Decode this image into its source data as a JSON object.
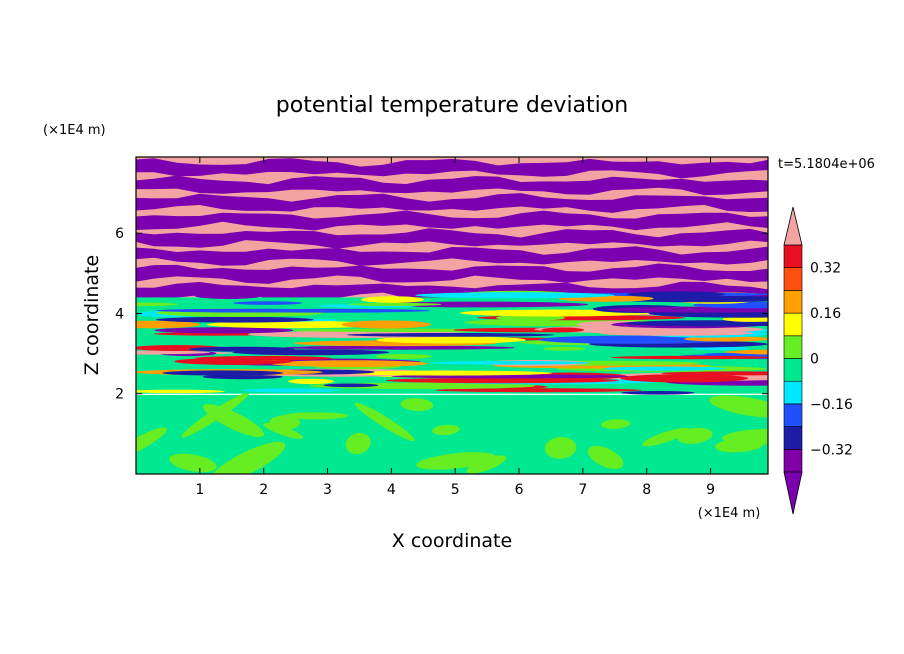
{
  "chart_data": {
    "type": "heatmap",
    "title": "potential temperature deviation",
    "xlabel": "X coordinate",
    "ylabel": "Z coordinate",
    "x_unit": "(×1E4 m)",
    "y_unit": "(×1E4 m)",
    "time_label": "t=5.1804e+06",
    "xlim": [
      0,
      9.9
    ],
    "ylim": [
      0,
      7.9
    ],
    "x_ticks": [
      1,
      2,
      3,
      4,
      5,
      6,
      7,
      8,
      9
    ],
    "y_ticks": [
      2,
      4,
      6
    ],
    "grid": false,
    "colorbar": {
      "levels": [
        -0.4,
        -0.32,
        -0.24,
        -0.16,
        -0.08,
        0,
        0.08,
        0.16,
        0.24,
        0.32,
        0.4
      ],
      "tick_values": [
        0.32,
        0.16,
        0,
        -0.16,
        -0.32
      ],
      "tick_labels": [
        "0.32",
        "0.16",
        "0",
        "−0.16",
        "−0.32"
      ],
      "colors": [
        "#7a00b0",
        "#8000a8",
        "#1c1ca6",
        "#2050ff",
        "#00e8ff",
        "#00e890",
        "#66ee22",
        "#ffff00",
        "#ffa000",
        "#ff5010",
        "#e81020",
        "#f4a3a3"
      ],
      "extend": "both"
    },
    "field_summary": [
      {
        "z_range": [
          0,
          2
        ],
        "description": "lower layer values between -0.08 and 0.08",
        "dominant_colors": [
          "#00e890",
          "#66ee22"
        ]
      },
      {
        "z_range": [
          2,
          4.4
        ],
        "description": "mixed small-scale layers spanning full range",
        "dominant_colors": [
          "#1c1ca6",
          "#00e8ff",
          "#66ee22",
          "#ffff00",
          "#e81020"
        ]
      },
      {
        "z_range": [
          4.4,
          7.9
        ],
        "description": "alternating horizontal bands of high and low values",
        "dominant_colors": [
          "#f4a3a3",
          "#7a00b0"
        ]
      }
    ]
  }
}
